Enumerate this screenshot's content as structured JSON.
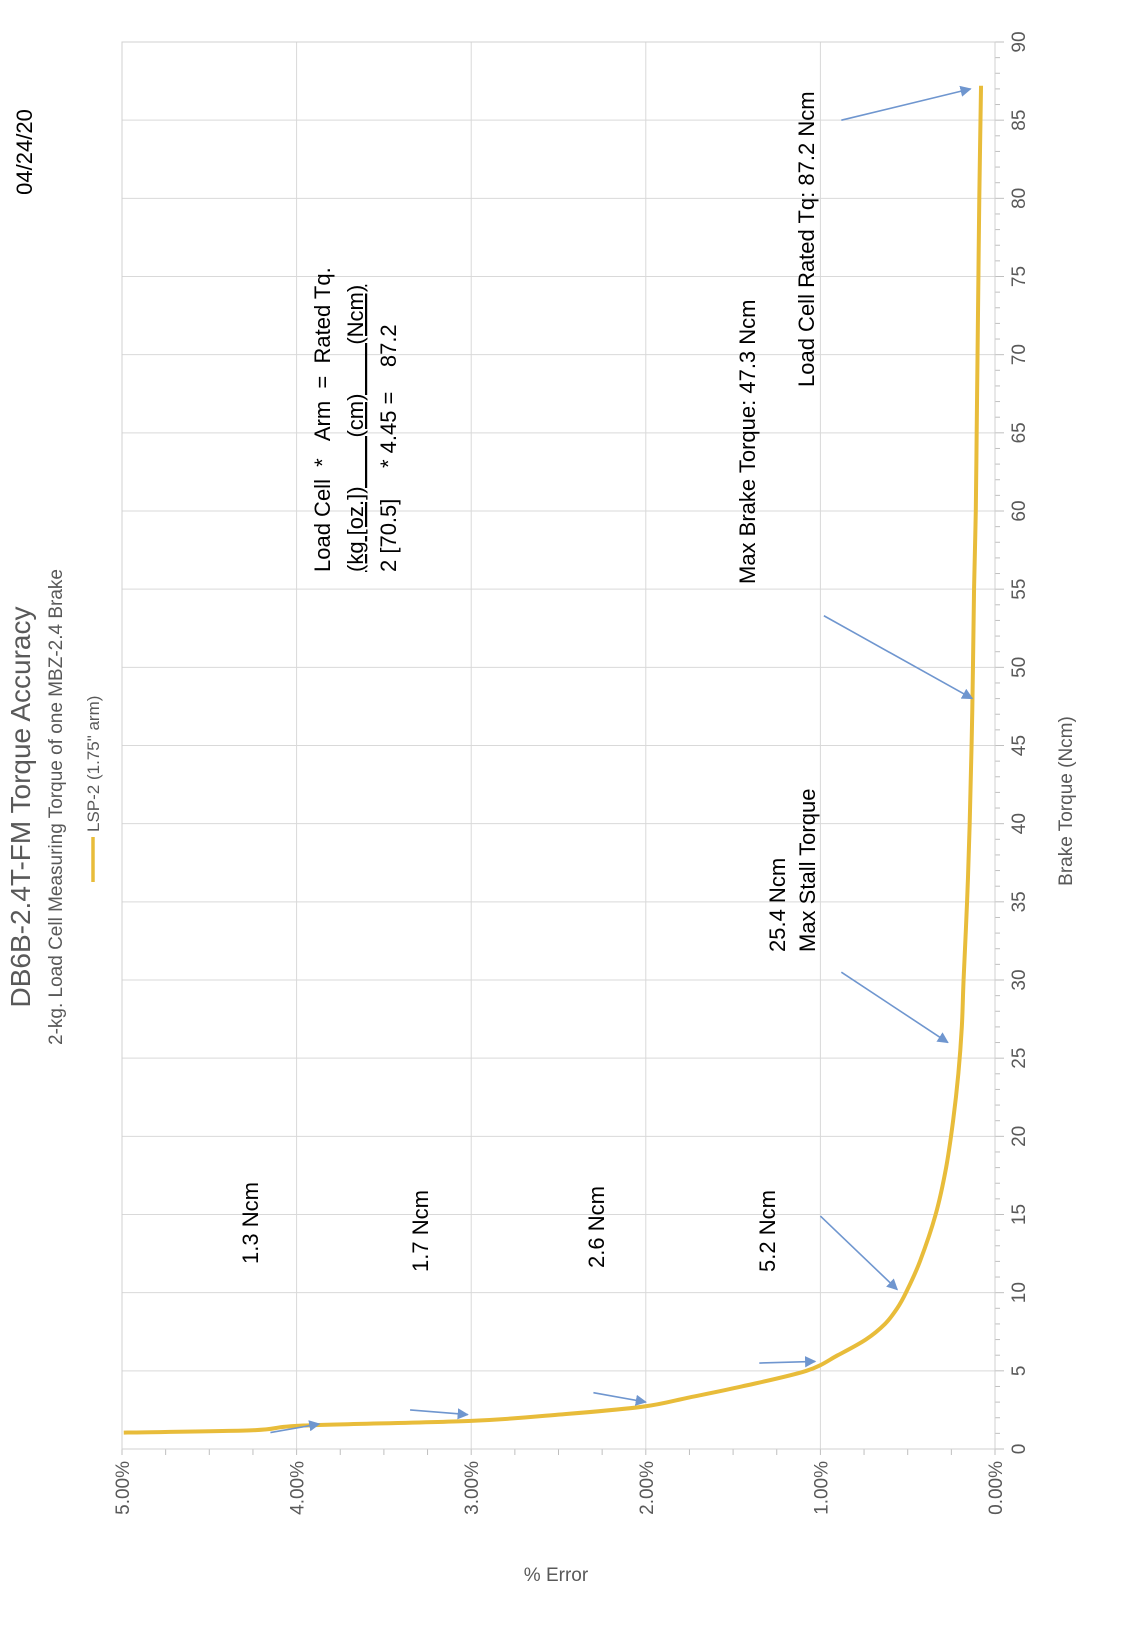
{
  "date": "04/24/20",
  "chart_data": {
    "type": "line",
    "title": "DB6B-2.4T-FM Torque Accuracy",
    "subtitle": "2-kg. Load Cell Measuring Torque of one MBZ-2.4 Brake",
    "xlabel": "Brake Torque (Ncm)",
    "ylabel": "% Error",
    "xlim": [
      0,
      90
    ],
    "ylim": [
      0,
      5
    ],
    "x_ticks": [
      "0",
      "5",
      "10",
      "15",
      "20",
      "25",
      "30",
      "35",
      "40",
      "45",
      "50",
      "55",
      "60",
      "65",
      "70",
      "75",
      "80",
      "85",
      "90"
    ],
    "y_ticks": [
      "0.00%",
      "1.00%",
      "2.00%",
      "3.00%",
      "4.00%",
      "5.00%"
    ],
    "grid": true,
    "legend_position": "top",
    "series": [
      {
        "name": "LSP-2 (1.75\" arm)",
        "color": "#e8bc3a",
        "x": [
          1.05,
          1.2,
          1.5,
          1.8,
          2.2,
          2.7,
          3.3,
          4.0,
          5.0,
          6.0,
          7.0,
          8.0,
          9.0,
          10.0,
          12.0,
          15.0,
          18.0,
          21.0,
          24.0,
          27.0,
          30.0,
          35.0,
          40.0,
          47.3,
          55.0,
          60.0,
          65.0,
          70.0,
          75.0,
          80.0,
          87.2
        ],
        "y": [
          4.99,
          4.25,
          3.96,
          3.0,
          2.5,
          2.02,
          1.75,
          1.45,
          1.08,
          0.9,
          0.74,
          0.63,
          0.56,
          0.51,
          0.43,
          0.34,
          0.28,
          0.24,
          0.21,
          0.19,
          0.18,
          0.16,
          0.145,
          0.13,
          0.12,
          0.11,
          0.105,
          0.1,
          0.095,
          0.09,
          0.08
        ]
      }
    ]
  },
  "annotations": {
    "a1": "1.3 Ncm",
    "a2": "1.7 Ncm",
    "a3": "2.6 Ncm",
    "a4": "5.2 Ncm",
    "a5_line1": "25.4 Ncm",
    "a5_line2": "Max Stall Torque",
    "a6": "Max Brake Torque: 47.3 Ncm",
    "a7": "Load Cell Rated Tq: 87.2 Ncm",
    "formula_row1": "Load Cell  *   Arm  =  Rated Tq.",
    "formula_row2": "(kg [oz.])        (cm)        (Ncm)",
    "formula_row3": "2 [70.5]     * 4.45 =    87.2"
  },
  "colors": {
    "series": "#e8bc3a",
    "arrow": "#6f96cf",
    "grid": "#d9d9d9",
    "text_gray": "#595959"
  }
}
